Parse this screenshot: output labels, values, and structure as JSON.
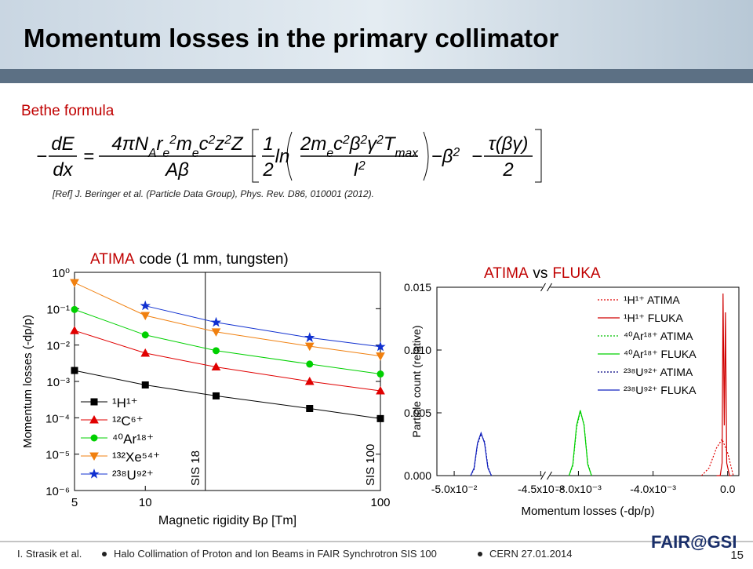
{
  "title": "Momentum losses in the primary collimator",
  "section": "Bethe formula",
  "formula": [
    {
      "text": [
        [
          "−"
        ]
      ]
    },
    {
      "num": [
        [
          "dE"
        ]
      ],
      "den": [
        [
          "dx"
        ]
      ]
    },
    {
      "text": [
        [
          "="
        ]
      ]
    },
    {
      "num": [
        [
          "4πN"
        ],
        [
          "A",
          "sub"
        ],
        [
          "r"
        ],
        [
          "e",
          "sub"
        ],
        [
          "2",
          "sup"
        ],
        [
          "m"
        ],
        [
          "e",
          "sub"
        ],
        [
          "c"
        ],
        [
          "2",
          "sup"
        ],
        [
          "z"
        ],
        [
          "2",
          "sup"
        ],
        [
          "Z"
        ]
      ],
      "den": [
        [
          "Aβ"
        ]
      ]
    },
    {
      "num": [
        [
          "1"
        ]
      ],
      "den": [
        [
          "2"
        ]
      ]
    },
    {
      "text": [
        [
          "ln"
        ]
      ]
    },
    {
      "num": [
        [
          "2m"
        ],
        [
          "e",
          "sub"
        ],
        [
          "c"
        ],
        [
          "2",
          "sup"
        ],
        [
          "β"
        ],
        [
          "2",
          "sup"
        ],
        [
          "γ"
        ],
        [
          "2",
          "sup"
        ],
        [
          "T"
        ],
        [
          "max",
          "sub"
        ]
      ],
      "den": [
        [
          "I"
        ],
        [
          "2",
          "sup"
        ]
      ]
    },
    {
      "text": [
        [
          "−β"
        ],
        [
          "2",
          "sup"
        ]
      ]
    },
    {
      "text": [
        [
          "−"
        ]
      ]
    },
    {
      "num": [
        [
          "τ(βγ)"
        ]
      ],
      "den": [
        [
          "2"
        ]
      ]
    }
  ],
  "reference": "[Ref] J. Beringer et al. (Particle Data Group), Phys. Rev. D86, 010001 (2012).",
  "chart_data": [
    {
      "type": "line",
      "title_parts": [
        {
          "text": "ATIMA",
          "color": "#c00000"
        },
        {
          "text": "code (1 mm, tungsten)",
          "color": "#000000"
        }
      ],
      "x_label": "Magnetic rigidity Bρ [Tm]",
      "y_label": "Momentum losses (-dp/p)",
      "x_log": true,
      "y_log": true,
      "xlim": [
        5,
        100
      ],
      "xticks": [
        5,
        10,
        100
      ],
      "ylim": [
        1e-06,
        1
      ],
      "yticks": [
        {
          "value": 1,
          "label": "10⁰"
        },
        {
          "value": 0.1,
          "label": "10⁻¹"
        },
        {
          "value": 0.01,
          "label": "10⁻²"
        },
        {
          "value": 0.001,
          "label": "10⁻³"
        },
        {
          "value": 0.0001,
          "label": "10⁻⁴"
        },
        {
          "value": 1e-05,
          "label": "10⁻⁵"
        },
        {
          "value": 1e-06,
          "label": "10⁻⁶"
        }
      ],
      "vlines": [
        {
          "x": 18,
          "label": "SIS 18"
        },
        {
          "x": 100,
          "label": "SIS 100"
        }
      ],
      "legend": "lower left",
      "series": [
        {
          "name": "¹H¹⁺",
          "color": "#000000",
          "marker": "square",
          "x": [
            5,
            10,
            20,
            50,
            100
          ],
          "values": [
            0.002,
            0.0008,
            0.0004,
            0.00018,
            9.5e-05
          ]
        },
        {
          "name": "¹²C⁶⁺",
          "color": "#e00000",
          "marker": "triangle-up",
          "x": [
            5,
            10,
            20,
            50,
            100
          ],
          "values": [
            0.025,
            0.006,
            0.0025,
            0.001,
            0.00055
          ]
        },
        {
          "name": "⁴⁰Ar¹⁸⁺",
          "color": "#00d000",
          "marker": "circle",
          "x": [
            5,
            10,
            20,
            50,
            100
          ],
          "values": [
            0.095,
            0.019,
            0.007,
            0.003,
            0.0016
          ]
        },
        {
          "name": "¹³²Xe⁵⁴⁺",
          "color": "#f08010",
          "marker": "triangle-down",
          "x": [
            5,
            10,
            20,
            50,
            100
          ],
          "values": [
            0.52,
            0.065,
            0.023,
            0.0093,
            0.005
          ]
        },
        {
          "name": "²³⁸U⁹²⁺",
          "color": "#1030d0",
          "marker": "star",
          "x": [
            10,
            20,
            50,
            100
          ],
          "values": [
            0.12,
            0.042,
            0.016,
            0.009
          ]
        }
      ]
    },
    {
      "type": "line",
      "title_parts": [
        {
          "text": "ATIMA",
          "color": "#c00000"
        },
        {
          "text": "vs",
          "color": "#000000"
        },
        {
          "text": "FLUKA",
          "color": "#c00000"
        }
      ],
      "x_label": "Momentum losses (-dp/p)",
      "y_label": "Particle count (relative)",
      "x_broken": true,
      "xlim_segments": [
        [
          -0.051,
          -0.0447
        ],
        [
          -0.0097,
          0.0006
        ]
      ],
      "xticks": [
        {
          "value": -0.05,
          "label": "-5.0x10⁻²"
        },
        {
          "value": -0.045,
          "label": "-4.5x10⁻²"
        },
        {
          "value": -0.008,
          "label": "-8.0x10⁻³"
        },
        {
          "value": -0.004,
          "label": "-4.0x10⁻³"
        },
        {
          "value": 0,
          "label": "0.0"
        }
      ],
      "ylim": [
        0,
        0.015
      ],
      "yticks": [
        {
          "value": 0,
          "label": "0.000"
        },
        {
          "value": 0.005,
          "label": "0.005"
        },
        {
          "value": 0.01,
          "label": "0.010"
        },
        {
          "value": 0.015,
          "label": "0.015"
        }
      ],
      "legend": "upper right",
      "series": [
        {
          "name": "¹H¹⁺ ATIMA",
          "color": "#e00000",
          "dashed": true,
          "x": [
            -0.0014,
            -0.001,
            -0.0006,
            -0.0003,
            0,
            0.0003
          ],
          "values": [
            0,
            0.0006,
            0.0022,
            0.0029,
            0.0018,
            0
          ]
        },
        {
          "name": "¹H¹⁺ FLUKA",
          "color": "#d00000",
          "dashed": false,
          "x": [
            -0.0006,
            -0.0004,
            -0.0003,
            -0.00025,
            -0.00018,
            -0.00012,
            -5e-05,
            0.0001,
            0.0002
          ],
          "values": [
            0,
            0,
            0.001,
            0.0145,
            0.004,
            0.013,
            0.001,
            0,
            0
          ]
        },
        {
          "name": "⁴⁰Ar¹⁸⁺ ATIMA",
          "color": "#00c000",
          "dashed": true,
          "x": [
            -0.0085,
            -0.0083,
            -0.0081,
            -0.0079,
            -0.0077,
            -0.0075,
            -0.0073
          ],
          "values": [
            0,
            0.0008,
            0.0038,
            0.0051,
            0.0041,
            0.001,
            0
          ]
        },
        {
          "name": "⁴⁰Ar¹⁸⁺ FLUKA",
          "color": "#00d000",
          "dashed": false,
          "x": [
            -0.0085,
            -0.0083,
            -0.0081,
            -0.0079,
            -0.0077,
            -0.0075,
            -0.0073
          ],
          "values": [
            0,
            0.0009,
            0.004,
            0.0052,
            0.004,
            0.0009,
            0
          ]
        },
        {
          "name": "²³⁸U⁹²⁺ ATIMA",
          "color": "#000080",
          "dashed": true,
          "x": [
            -0.04905,
            -0.04885,
            -0.04865,
            -0.04845,
            -0.04825,
            -0.04805,
            -0.04785
          ],
          "values": [
            0,
            0.0005,
            0.0025,
            0.0033,
            0.0027,
            0.0007,
            0
          ]
        },
        {
          "name": "²³⁸U⁹²⁺ FLUKA",
          "color": "#1020c0",
          "dashed": false,
          "x": [
            -0.04905,
            -0.04885,
            -0.04865,
            -0.04845,
            -0.04825,
            -0.04805,
            -0.04785
          ],
          "values": [
            0,
            0.0006,
            0.0026,
            0.0034,
            0.0026,
            0.0006,
            0
          ]
        }
      ]
    }
  ],
  "footer": {
    "author": "I. Strasik et al.",
    "talk": "Halo Collimation of Proton and Ion Beams in FAIR Synchrotron SIS 100",
    "venue": "CERN 27.01.2014",
    "page": "15",
    "logo": "FAIR@GSI"
  }
}
